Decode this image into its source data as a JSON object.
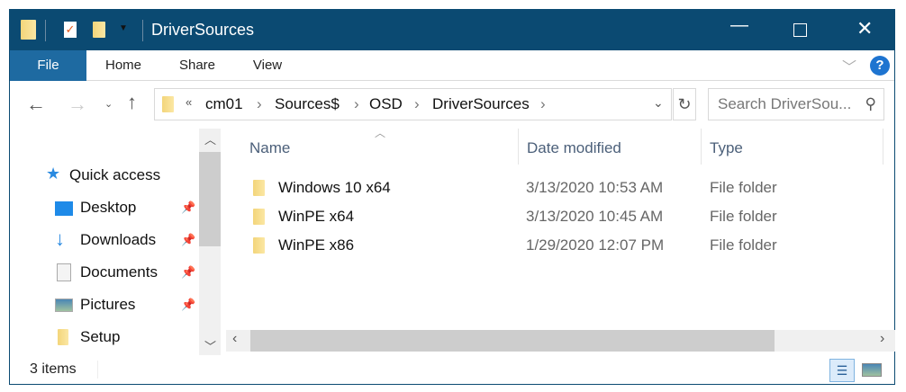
{
  "title": "DriverSources",
  "ribbon": {
    "tabs": [
      "File",
      "Home",
      "Share",
      "View"
    ]
  },
  "address": {
    "prefix": "«",
    "parts": [
      "cm01",
      "Sources$",
      "OSD",
      "DriverSources"
    ]
  },
  "search": {
    "placeholder": "Search DriverSou..."
  },
  "nav": {
    "quick_access": "Quick access",
    "items": [
      {
        "label": "Desktop",
        "icon": "desktop-icon",
        "pinned": true
      },
      {
        "label": "Downloads",
        "icon": "download-icon",
        "pinned": true
      },
      {
        "label": "Documents",
        "icon": "documents-icon",
        "pinned": true
      },
      {
        "label": "Pictures",
        "icon": "pictures-icon",
        "pinned": true
      },
      {
        "label": "Setup",
        "icon": "folder-icon",
        "pinned": false
      }
    ]
  },
  "columns": [
    "Name",
    "Date modified",
    "Type"
  ],
  "files": [
    {
      "name": "Windows 10 x64",
      "date": "3/13/2020 10:53 AM",
      "type": "File folder"
    },
    {
      "name": "WinPE x64",
      "date": "3/13/2020 10:45 AM",
      "type": "File folder"
    },
    {
      "name": "WinPE x86",
      "date": "1/29/2020 12:07 PM",
      "type": "File folder"
    }
  ],
  "status": {
    "items": "3 items"
  },
  "colors": {
    "titlebar": "#0b4a72",
    "file_tab": "#1e6aa1"
  }
}
